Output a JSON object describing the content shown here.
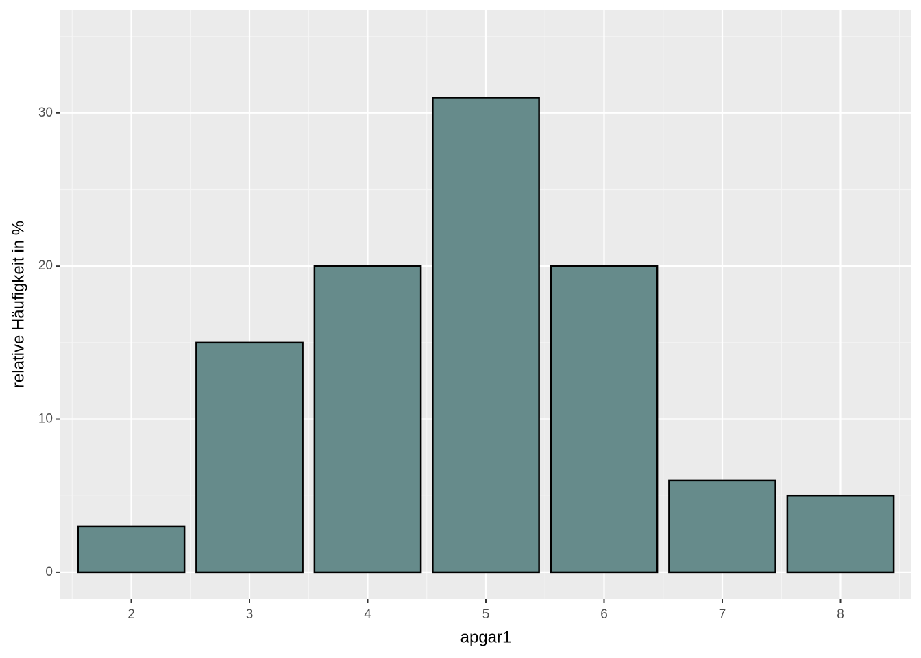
{
  "chart_data": {
    "type": "bar",
    "x_label": "apgar1",
    "y_label": "relative Häufigkeit in %",
    "categories": [
      "2",
      "3",
      "4",
      "5",
      "6",
      "7",
      "8"
    ],
    "values": [
      3,
      15,
      20,
      31,
      20,
      6,
      5
    ],
    "color": "#668b8b",
    "ylim": [
      -1.75,
      36.75
    ],
    "yticks": [
      0,
      10,
      20,
      30
    ],
    "grid": true
  }
}
